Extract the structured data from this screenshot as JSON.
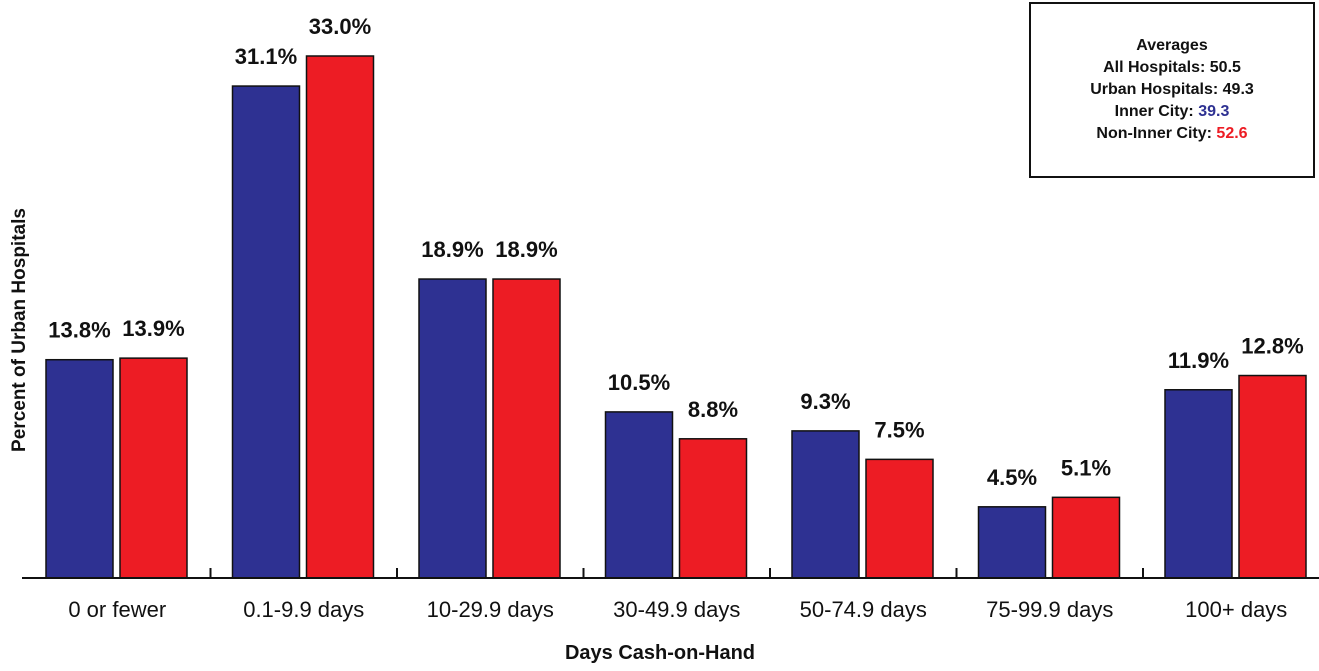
{
  "chart_data": {
    "type": "bar",
    "xlabel": "Days Cash-on-Hand",
    "ylabel": "Percent of Urban Hospitals",
    "categories": [
      "0 or fewer",
      "0.1-9.9 days",
      "10-29.9 days",
      "30-49.9 days",
      "50-74.9 days",
      "75-99.9 days",
      "100+ days"
    ],
    "series": [
      {
        "values": [
          13.8,
          31.1,
          18.9,
          10.5,
          9.3,
          4.5,
          11.9
        ],
        "labels": [
          "13.8%",
          "31.1%",
          "18.9%",
          "10.5%",
          "9.3%",
          "4.5%",
          "11.9%"
        ],
        "color": "#2E3192"
      },
      {
        "values": [
          13.9,
          33.0,
          18.9,
          8.8,
          7.5,
          5.1,
          12.8
        ],
        "labels": [
          "13.9%",
          "33.0%",
          "18.9%",
          "8.8%",
          "7.5%",
          "5.1%",
          "12.8%"
        ],
        "color": "#ED1C24"
      }
    ],
    "ylim": [
      0,
      33.0
    ],
    "grid": false,
    "legend_position": "top-right",
    "averages_box": {
      "title": "Averages",
      "lines": [
        {
          "label": "All Hospitals:",
          "value": "50.5",
          "color": "#111111"
        },
        {
          "label": "Urban Hospitals:",
          "value": "49.3",
          "color": "#111111"
        },
        {
          "label": "Inner City:",
          "value": "39.3",
          "color": "#2E3192"
        },
        {
          "label": "Non-Inner City:",
          "value": "52.6",
          "color": "#ED1C24"
        }
      ]
    }
  }
}
